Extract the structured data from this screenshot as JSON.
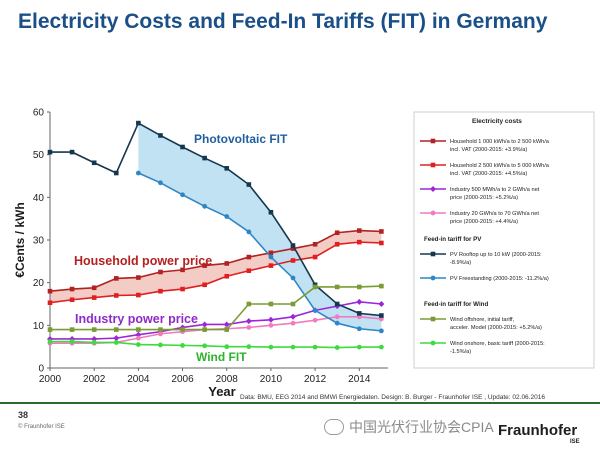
{
  "title": "Electricity Costs and Feed-In Tariffs (FIT) in Germany",
  "source_note": "Data: BMU, EEG 2014 and BMWi Energiedaten. Design: B. Burger - Fraunhofer ISE , Update: 02.06.2016",
  "slide_number": "38",
  "copyright": "© Fraunhofer ISE",
  "watermark": "中国光伏行业协会CPIA",
  "logo": {
    "name": "Fraunhofer",
    "sub": "ISE"
  },
  "chart_data": {
    "type": "line",
    "xlabel": "Year",
    "ylabel": "€Cents / kWh",
    "xlim": [
      2000,
      2015.3
    ],
    "ylim": [
      0,
      60
    ],
    "xticks": [
      2000,
      2002,
      2004,
      2006,
      2008,
      2010,
      2012,
      2014
    ],
    "yticks": [
      0,
      10,
      20,
      30,
      40,
      50,
      60
    ],
    "grid": false,
    "legend_position": "right",
    "legend_title": "Electricity costs",
    "annotations": [
      {
        "text": "Photovoltaic FIT",
        "color": "#1f5fa0"
      },
      {
        "text": "Household power price",
        "color": "#b52121"
      },
      {
        "text": "Industry power price",
        "color": "#8e2bc6"
      },
      {
        "text": "Wind FIT",
        "color": "#2db32d"
      }
    ],
    "bands": [
      {
        "between": [
          "household_1000",
          "household_2500"
        ],
        "color": "#f3c7c0"
      },
      {
        "between": [
          "pv_rooftop",
          "pv_freestanding"
        ],
        "color": "#b9dff2"
      }
    ],
    "series": [
      {
        "id": "household_1000",
        "name": "Household 1 000 kWh/a to 2 500 kWh/a incl. VAT (2000-2015: +3.9%/a)",
        "color": "#b22222",
        "marker": "square",
        "x": [
          2000,
          2001,
          2002,
          2003,
          2004,
          2005,
          2006,
          2007,
          2008,
          2009,
          2010,
          2011,
          2012,
          2013,
          2014,
          2015
        ],
        "y": [
          18,
          18.5,
          18.8,
          21,
          21.2,
          22.5,
          23,
          24,
          24.5,
          26,
          27,
          28,
          29,
          31.7,
          32.2,
          32
        ]
      },
      {
        "id": "household_2500",
        "name": "Household 2 500 kWh/a to 5 000 kWh/a incl. VAT (2000-2015: +4.5%/a)",
        "color": "#e02020",
        "marker": "square",
        "x": [
          2000,
          2001,
          2002,
          2003,
          2004,
          2005,
          2006,
          2007,
          2008,
          2009,
          2010,
          2011,
          2012,
          2013,
          2014,
          2015
        ],
        "y": [
          15.3,
          16,
          16.5,
          17,
          17.1,
          18,
          18.5,
          19.5,
          21.5,
          22.8,
          24,
          25.2,
          26,
          29,
          29.5,
          29.3
        ]
      },
      {
        "id": "industry_500",
        "name": "Industry 500 MWh/a to 2 GWh/a net price (2000-2015: +5.2%/a)",
        "color": "#9c27d8",
        "marker": "diamond",
        "x": [
          2000,
          2001,
          2002,
          2003,
          2004,
          2005,
          2006,
          2007,
          2008,
          2009,
          2010,
          2011,
          2012,
          2013,
          2014,
          2015
        ],
        "y": [
          6.8,
          6.8,
          6.8,
          7,
          7.8,
          8.5,
          9.5,
          10.2,
          10.2,
          11,
          11.3,
          12,
          13.5,
          14.5,
          15.5,
          15
        ]
      },
      {
        "id": "industry_20",
        "name": "Industry 20 GWh/a to 70 GWh/a net price (2000-2015: +4.4%/a)",
        "color": "#f07cc0",
        "marker": "circle",
        "x": [
          2000,
          2001,
          2002,
          2003,
          2004,
          2005,
          2006,
          2007,
          2008,
          2009,
          2010,
          2011,
          2012,
          2013,
          2014,
          2015
        ],
        "y": [
          5.8,
          5.8,
          5.8,
          6,
          7,
          8,
          8.5,
          9,
          9.2,
          9.5,
          10,
          10.5,
          11.2,
          12,
          12,
          11.5
        ]
      },
      {
        "id": "pv_rooftop",
        "name": "PV Rooftop up to 10 kW (2000-2015: -8.9%/a)",
        "color": "#16384f",
        "marker": "square",
        "x": [
          2000,
          2001,
          2002,
          2003,
          2004,
          2005,
          2006,
          2007,
          2008,
          2009,
          2010,
          2011,
          2012,
          2013,
          2014,
          2015
        ],
        "y": [
          50.6,
          50.6,
          48.1,
          45.7,
          57.4,
          54.5,
          51.8,
          49.2,
          46.8,
          43,
          36.5,
          28.7,
          19.5,
          15,
          12.8,
          12.3
        ]
      },
      {
        "id": "pv_freestanding",
        "name": "PV Freestanding (2000-2015: -11.2%/a)",
        "color": "#2f86c6",
        "marker": "circle",
        "x": [
          2004,
          2005,
          2006,
          2007,
          2008,
          2009,
          2010,
          2011,
          2012,
          2013,
          2014,
          2015
        ],
        "y": [
          45.7,
          43.4,
          40.6,
          37.9,
          35.5,
          31.9,
          26,
          21.1,
          13.5,
          10.5,
          9.2,
          8.7
        ]
      },
      {
        "id": "wind_offshore",
        "name": "Wind offshore, initial tariff, acceler. Model (2000-2015: +5.2%/a)",
        "color": "#7a9c34",
        "marker": "square",
        "x": [
          2000,
          2001,
          2002,
          2003,
          2004,
          2005,
          2006,
          2007,
          2008,
          2009,
          2010,
          2011,
          2012,
          2013,
          2014,
          2015
        ],
        "y": [
          9,
          9,
          9,
          9,
          9,
          9,
          9,
          9,
          9,
          15,
          15,
          15,
          19,
          19,
          19,
          19.2
        ]
      },
      {
        "id": "wind_onshore",
        "name": "Wind onshore, basic tariff (2000-2015: -1.5%/a)",
        "color": "#3ddc3d",
        "marker": "circle",
        "x": [
          2000,
          2001,
          2002,
          2003,
          2004,
          2005,
          2006,
          2007,
          2008,
          2009,
          2010,
          2011,
          2012,
          2013,
          2014,
          2015
        ],
        "y": [
          6.2,
          6.2,
          6,
          6,
          5.5,
          5.4,
          5.3,
          5.2,
          5,
          5,
          4.9,
          4.9,
          4.9,
          4.8,
          4.9,
          4.9
        ]
      }
    ],
    "legend_groups": [
      {
        "heading": "",
        "items": [
          "household_1000",
          "household_2500",
          "industry_500",
          "industry_20"
        ]
      },
      {
        "heading": "Feed-in tariff for PV",
        "items": [
          "pv_rooftop",
          "pv_freestanding"
        ]
      },
      {
        "heading": "Feed-in tariff for Wind",
        "items": [
          "wind_offshore",
          "wind_onshore"
        ]
      }
    ]
  }
}
